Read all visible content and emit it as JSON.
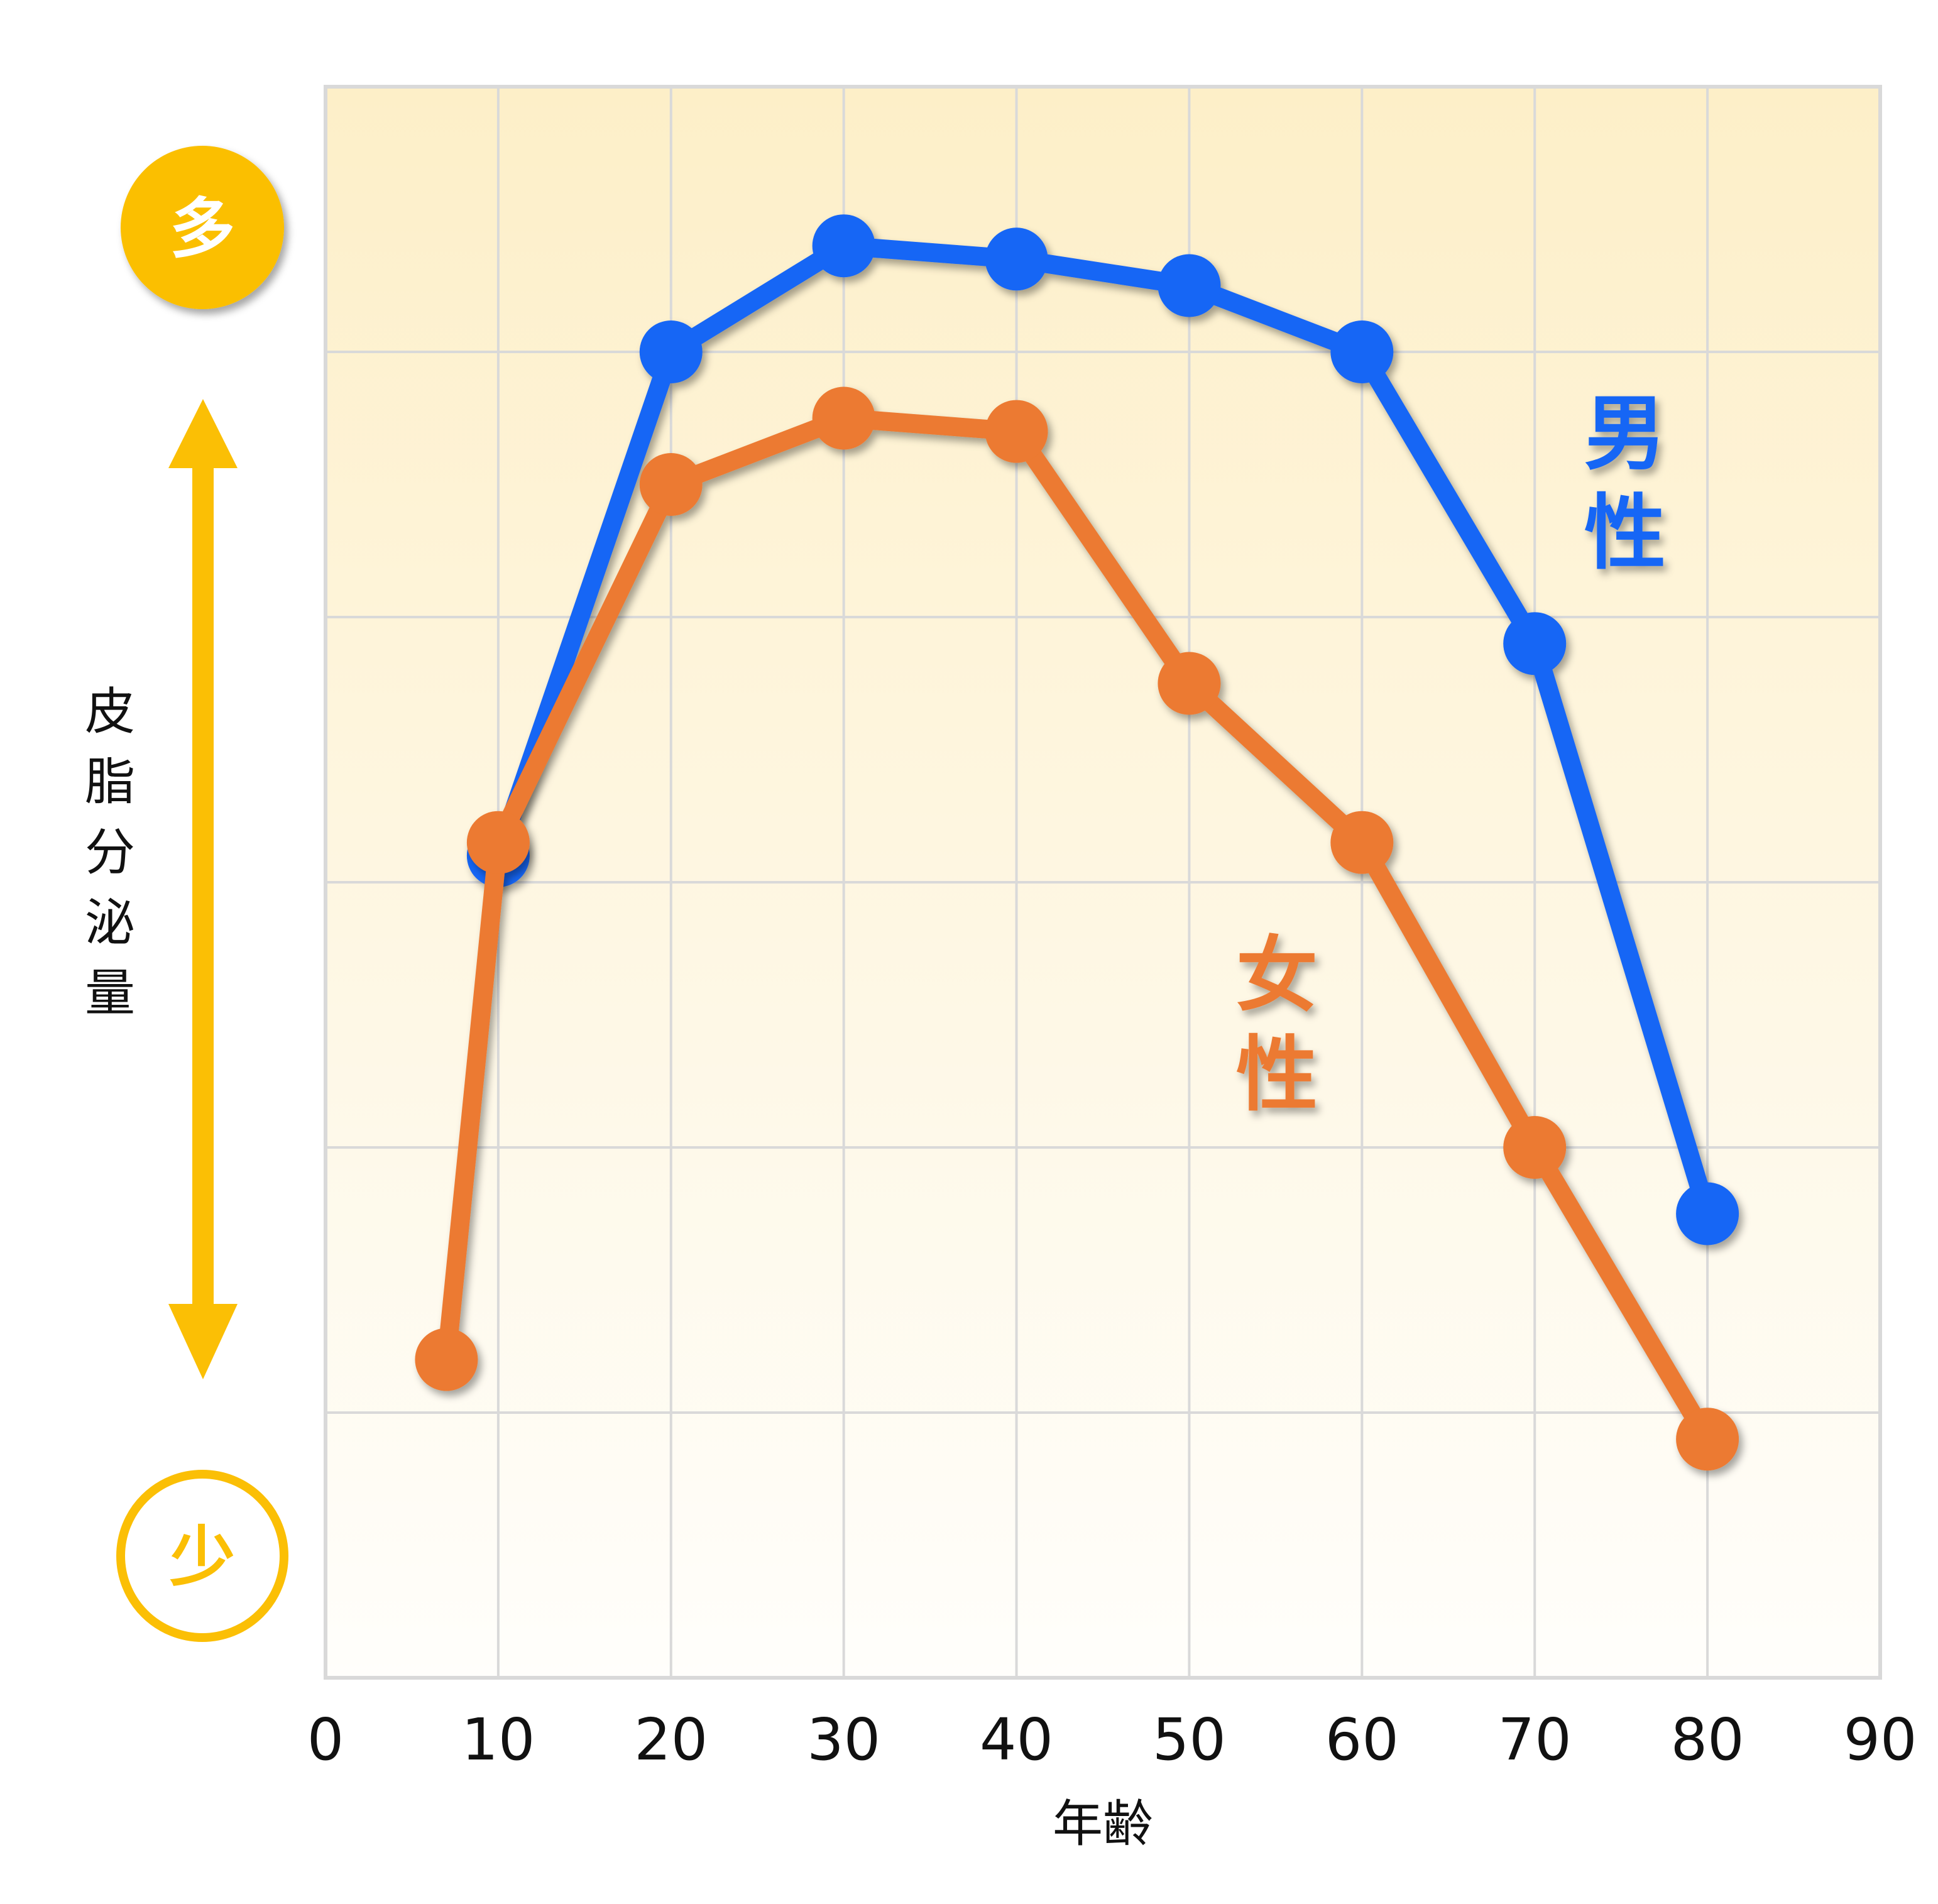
{
  "colors": {
    "male": "#1666f5",
    "female": "#ec7a30",
    "accent": "#fbbf05",
    "grid": "#d9d9d9",
    "background_top": "#fdefc8",
    "background_bottom": "#fffefb"
  },
  "chart_data": {
    "type": "line",
    "xlabel": "年齢",
    "ylabel": "皮脂分泌量",
    "y_high_label": "多",
    "y_low_label": "少",
    "xlim": [
      0,
      90
    ],
    "ylim": [
      0,
      6
    ],
    "x_ticks": [
      "0",
      "10",
      "20",
      "30",
      "40",
      "50",
      "60",
      "70",
      "80",
      "90"
    ],
    "grid": true,
    "series": [
      {
        "name": "男性",
        "color": "#1666f5",
        "x": [
          10,
          20,
          30,
          40,
          50,
          60,
          70,
          80
        ],
        "y": [
          3.1,
          5.0,
          5.4,
          5.35,
          5.25,
          5.0,
          3.9,
          1.75
        ]
      },
      {
        "name": "女性",
        "color": "#ec7a30",
        "x": [
          7,
          10,
          20,
          30,
          40,
          50,
          60,
          70,
          80
        ],
        "y": [
          1.2,
          3.15,
          4.5,
          4.75,
          4.7,
          3.75,
          3.15,
          2.0,
          0.9
        ]
      }
    ]
  }
}
